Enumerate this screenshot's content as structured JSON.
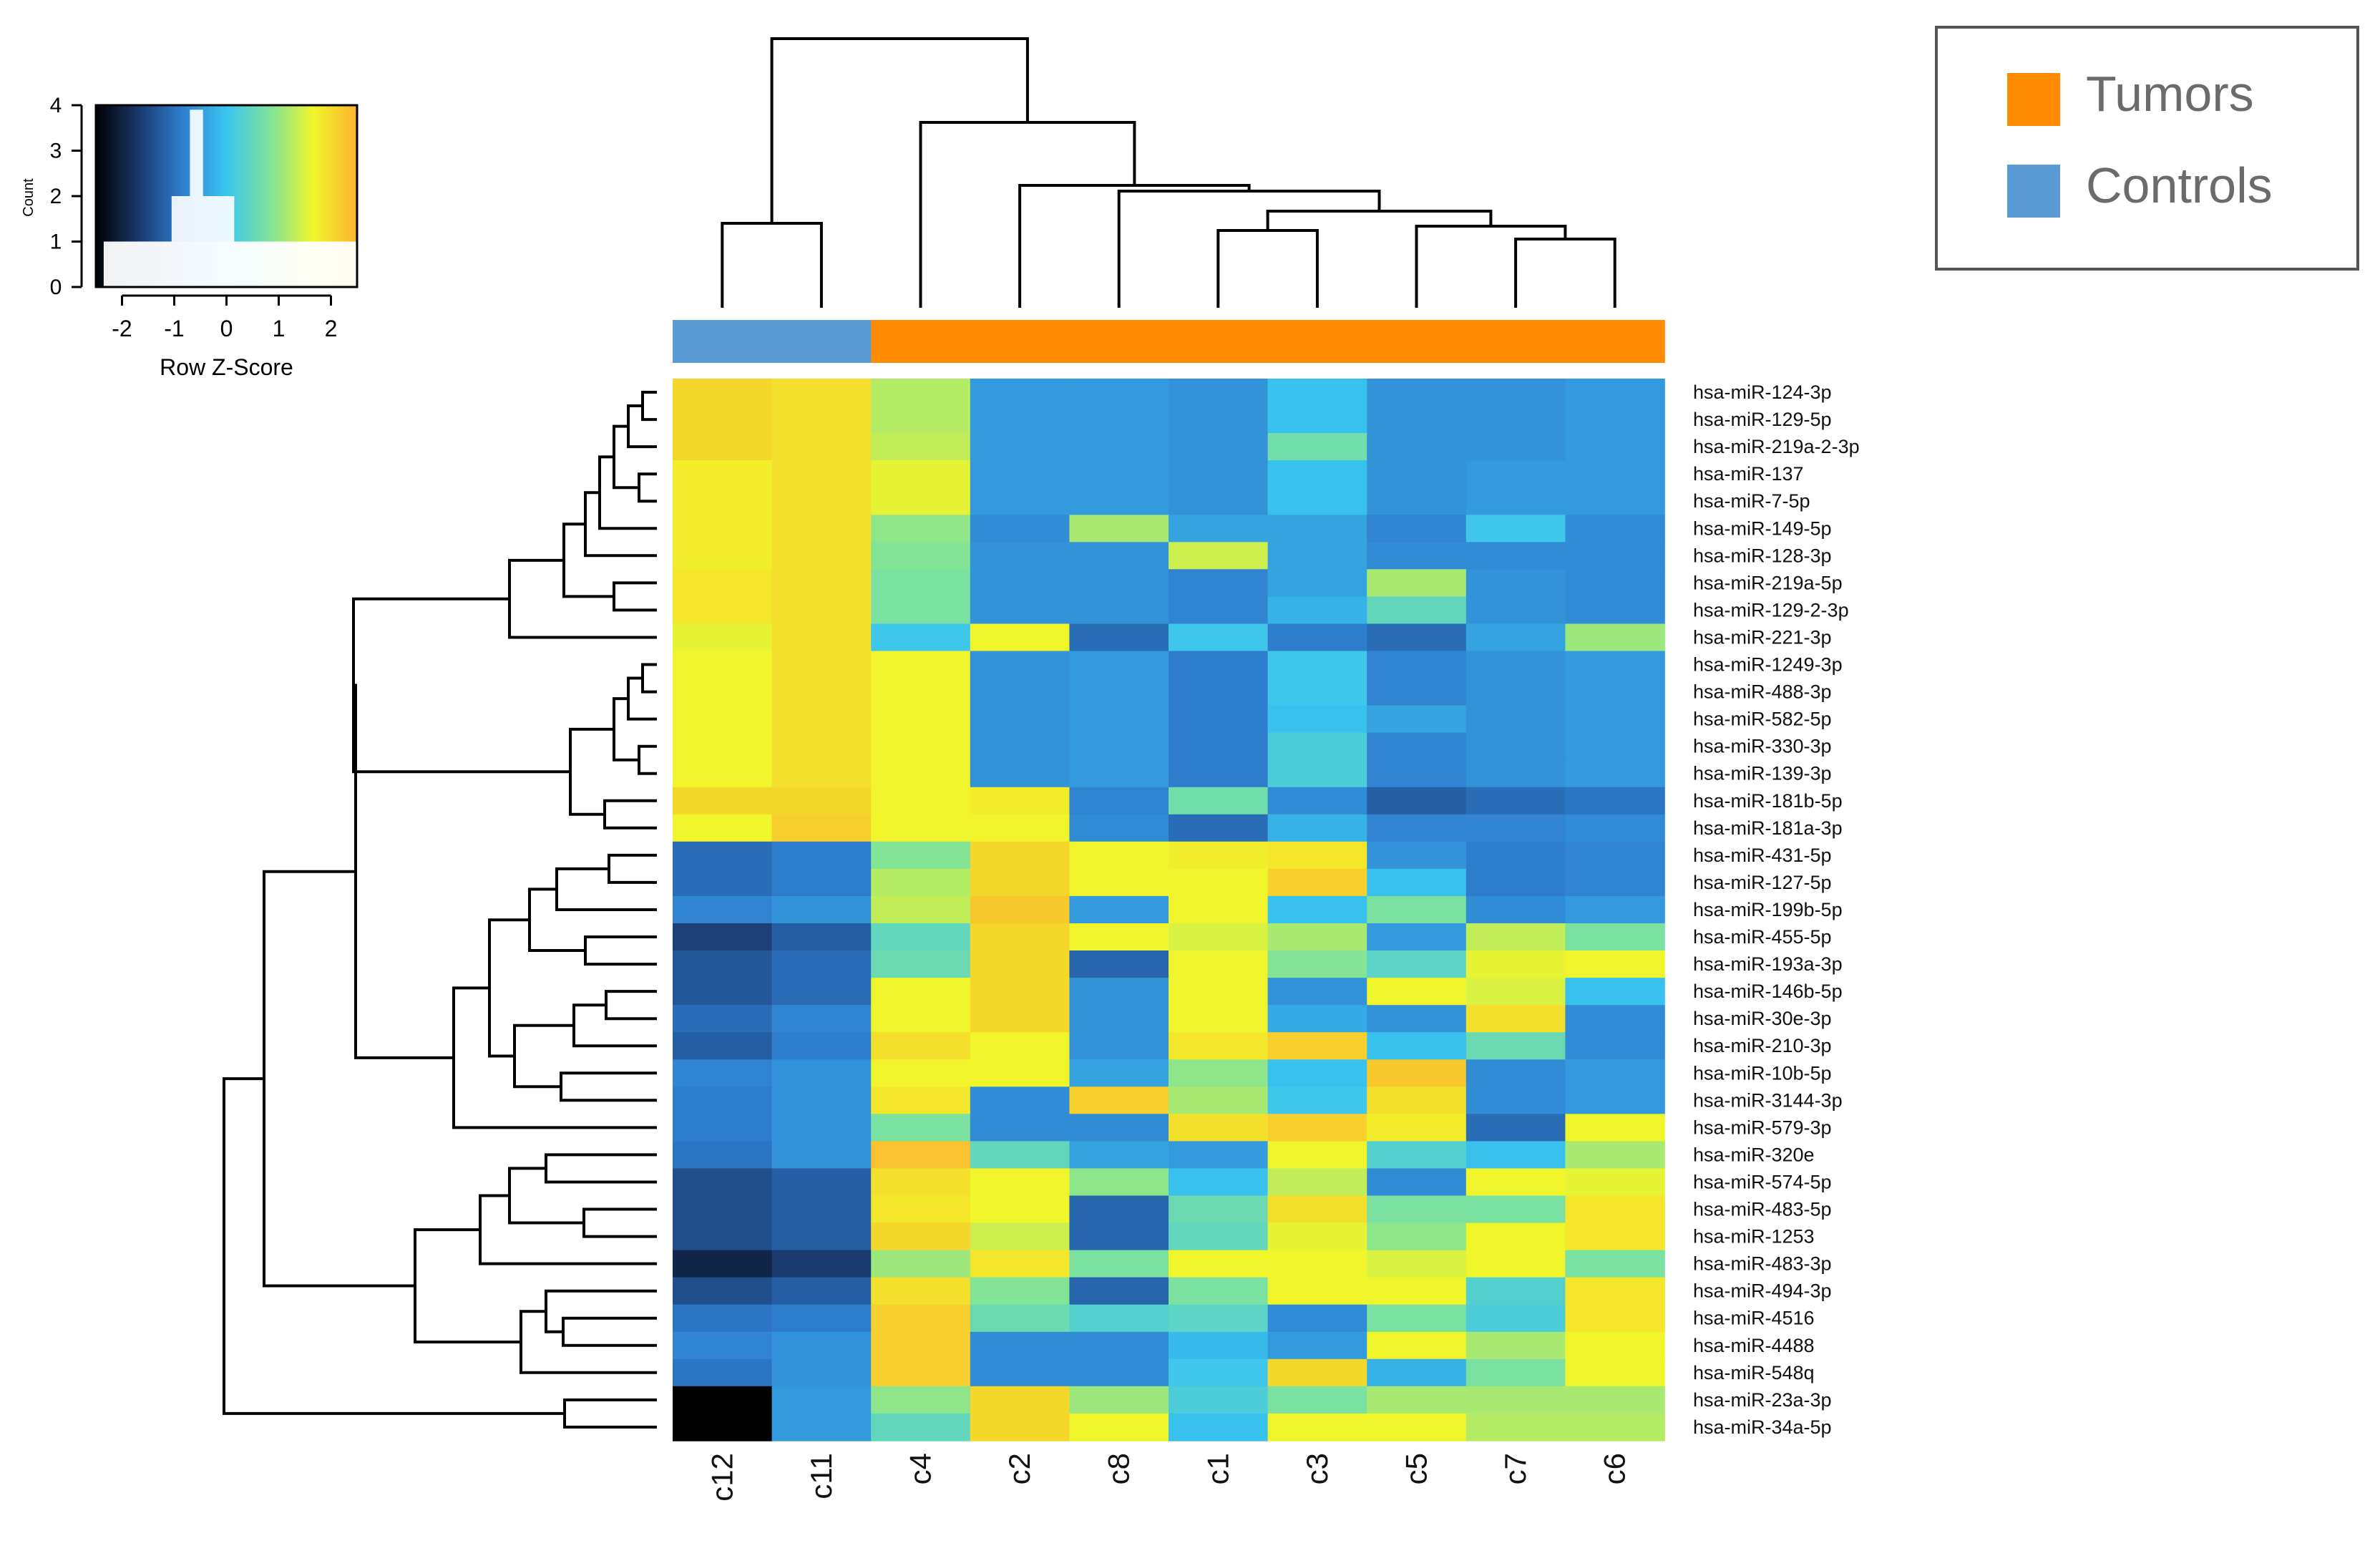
{
  "chart_data": {
    "type": "heatmap",
    "title": "",
    "columns": [
      "c12",
      "c11",
      "c4",
      "c2",
      "c8",
      "c1",
      "c3",
      "c5",
      "c7",
      "c6"
    ],
    "column_groups": [
      "Controls",
      "Controls",
      "Tumors",
      "Tumors",
      "Tumors",
      "Tumors",
      "Tumors",
      "Tumors",
      "Tumors",
      "Tumors"
    ],
    "rows": [
      "hsa-miR-124-3p",
      "hsa-miR-129-5p",
      "hsa-miR-219a-2-3p",
      "hsa-miR-137",
      "hsa-miR-7-5p",
      "hsa-miR-149-5p",
      "hsa-miR-128-3p",
      "hsa-miR-219a-5p",
      "hsa-miR-129-2-3p",
      "hsa-miR-221-3p",
      "hsa-miR-1249-3p",
      "hsa-miR-488-3p",
      "hsa-miR-582-5p",
      "hsa-miR-330-3p",
      "hsa-miR-139-3p",
      "hsa-miR-181b-5p",
      "hsa-miR-181a-3p",
      "hsa-miR-431-5p",
      "hsa-miR-127-5p",
      "hsa-miR-199b-5p",
      "hsa-miR-455-5p",
      "hsa-miR-193a-3p",
      "hsa-miR-146b-5p",
      "hsa-miR-30e-3p",
      "hsa-miR-210-3p",
      "hsa-miR-10b-5p",
      "hsa-miR-3144-3p",
      "hsa-miR-579-3p",
      "hsa-miR-320e",
      "hsa-miR-574-5p",
      "hsa-miR-483-5p",
      "hsa-miR-1253",
      "hsa-miR-483-3p",
      "hsa-miR-494-3p",
      "hsa-miR-4516",
      "hsa-miR-4488",
      "hsa-miR-548q",
      "hsa-miR-23a-3p",
      "hsa-miR-34a-5p"
    ],
    "values": [
      [
        2.0,
        1.9,
        1.1,
        -0.8,
        -0.8,
        -0.9,
        -0.3,
        -0.9,
        -0.9,
        -0.8
      ],
      [
        2.0,
        1.9,
        1.1,
        -0.8,
        -0.8,
        -0.9,
        -0.3,
        -0.9,
        -0.9,
        -0.8
      ],
      [
        2.0,
        1.9,
        1.2,
        -0.8,
        -0.8,
        -0.9,
        0.5,
        -0.9,
        -0.9,
        -0.8
      ],
      [
        1.7,
        1.9,
        1.5,
        -0.8,
        -0.8,
        -0.9,
        -0.3,
        -0.9,
        -0.8,
        -0.8
      ],
      [
        1.7,
        1.9,
        1.5,
        -0.8,
        -0.8,
        -0.9,
        -0.3,
        -0.9,
        -0.8,
        -0.8
      ],
      [
        1.7,
        1.9,
        0.8,
        -1.0,
        1.0,
        -0.7,
        -0.7,
        -1.1,
        -0.2,
        -1.0
      ],
      [
        1.7,
        1.9,
        0.7,
        -0.9,
        -0.9,
        1.3,
        -0.7,
        -1.0,
        -1.0,
        -1.0
      ],
      [
        1.8,
        1.9,
        0.6,
        -0.9,
        -0.9,
        -1.1,
        -0.7,
        1.0,
        -0.9,
        -1.0
      ],
      [
        1.8,
        1.9,
        0.6,
        -0.9,
        -0.9,
        -1.1,
        -0.5,
        0.3,
        -0.9,
        -1.0
      ],
      [
        1.5,
        1.9,
        -0.2,
        1.6,
        -1.4,
        -0.2,
        -1.2,
        -1.4,
        -0.7,
        0.9
      ],
      [
        1.6,
        1.9,
        1.6,
        -0.9,
        -0.8,
        -1.2,
        -0.2,
        -1.1,
        -0.9,
        -0.8
      ],
      [
        1.6,
        1.9,
        1.6,
        -0.9,
        -0.8,
        -1.2,
        -0.2,
        -1.1,
        -0.9,
        -0.8
      ],
      [
        1.6,
        1.9,
        1.6,
        -0.9,
        -0.8,
        -1.2,
        -0.3,
        -0.7,
        -0.9,
        -0.8
      ],
      [
        1.6,
        1.9,
        1.6,
        -0.9,
        -0.8,
        -1.2,
        0.0,
        -1.1,
        -0.9,
        -0.8
      ],
      [
        1.6,
        1.9,
        1.6,
        -0.9,
        -0.8,
        -1.2,
        0.0,
        -1.1,
        -0.9,
        -0.8
      ],
      [
        2.0,
        2.0,
        1.6,
        1.7,
        -1.1,
        0.5,
        -1.0,
        -1.6,
        -1.4,
        -1.3
      ],
      [
        1.6,
        2.1,
        1.6,
        1.6,
        -1.0,
        -1.4,
        -0.5,
        -1.1,
        -1.1,
        -1.0
      ],
      [
        -1.4,
        -1.2,
        0.7,
        2.0,
        1.6,
        1.7,
        1.8,
        -0.9,
        -1.2,
        -1.1
      ],
      [
        -1.4,
        -1.2,
        1.1,
        2.0,
        1.6,
        1.6,
        2.1,
        -0.3,
        -1.2,
        -1.1
      ],
      [
        -1.1,
        -0.9,
        1.2,
        2.2,
        -0.8,
        1.6,
        -0.3,
        0.6,
        -1.0,
        -0.8
      ],
      [
        -2.0,
        -1.6,
        0.3,
        2.0,
        1.6,
        1.4,
        1.0,
        -0.8,
        1.2,
        0.6
      ],
      [
        -1.7,
        -1.4,
        0.4,
        2.0,
        -1.5,
        1.6,
        0.7,
        0.2,
        1.5,
        1.6
      ],
      [
        -1.7,
        -1.4,
        1.6,
        2.0,
        -0.9,
        1.6,
        -0.9,
        1.6,
        1.4,
        -0.3
      ],
      [
        -1.4,
        -1.1,
        1.6,
        2.0,
        -0.9,
        1.6,
        -0.6,
        -0.9,
        1.9,
        -1.0
      ],
      [
        -1.6,
        -1.2,
        1.9,
        1.6,
        -0.9,
        1.8,
        2.1,
        -0.3,
        0.4,
        -1.0
      ],
      [
        -1.1,
        -0.9,
        1.6,
        1.6,
        -0.7,
        0.8,
        -0.3,
        2.2,
        -1.0,
        -0.8
      ],
      [
        -1.2,
        -0.9,
        1.8,
        -1.0,
        2.1,
        1.0,
        -0.2,
        1.9,
        -1.0,
        -0.8
      ],
      [
        -1.2,
        -0.9,
        0.6,
        -1.0,
        -1.0,
        1.9,
        2.1,
        1.7,
        -1.4,
        1.6
      ],
      [
        -1.3,
        -0.9,
        2.3,
        0.3,
        -0.7,
        -0.8,
        1.6,
        0.1,
        -0.3,
        1.0
      ],
      [
        -1.8,
        -1.6,
        1.9,
        1.6,
        0.8,
        -0.3,
        1.2,
        -1.0,
        1.6,
        1.5
      ],
      [
        -1.8,
        -1.6,
        1.8,
        1.6,
        -1.5,
        0.4,
        1.9,
        0.6,
        0.6,
        1.8
      ],
      [
        -1.8,
        -1.6,
        2.0,
        1.3,
        -1.5,
        0.3,
        1.5,
        0.8,
        1.6,
        1.8
      ],
      [
        -2.4,
        -2.1,
        0.9,
        1.8,
        0.6,
        1.6,
        1.6,
        1.4,
        1.6,
        0.6
      ],
      [
        -1.8,
        -1.6,
        1.9,
        0.7,
        -1.5,
        0.6,
        1.6,
        1.6,
        0.1,
        1.8
      ],
      [
        -1.3,
        -1.2,
        2.1,
        0.4,
        0.1,
        0.2,
        -1.0,
        0.6,
        0.0,
        1.8
      ],
      [
        -1.1,
        -0.9,
        2.1,
        -1.0,
        -1.0,
        -0.4,
        -0.8,
        1.6,
        1.0,
        1.6
      ],
      [
        -1.3,
        -0.9,
        2.1,
        -1.0,
        -1.0,
        -0.2,
        2.0,
        -0.5,
        0.6,
        1.6
      ],
      [
        -3.0,
        -0.8,
        0.8,
        2.0,
        0.9,
        0.0,
        0.6,
        1.0,
        1.0,
        1.0
      ],
      [
        -3.0,
        -0.8,
        0.3,
        2.0,
        1.6,
        -0.3,
        1.6,
        1.6,
        1.1,
        1.1
      ]
    ],
    "color_key": {
      "title": "Count",
      "xlabel": "Row Z-Score",
      "x_ticks": [
        "-2",
        "-1",
        "0",
        "1",
        "2"
      ],
      "y_ticks": [
        "0",
        "1",
        "2",
        "3",
        "4"
      ],
      "xlim": [
        -2.5,
        2.5
      ],
      "ylim": [
        0,
        4
      ],
      "colors": [
        "#000000",
        "#1a3a6e",
        "#2f7fd0",
        "#3ac5f0",
        "#7fe39a",
        "#f0f52a",
        "#fcb42f"
      ]
    },
    "legend": [
      {
        "label": "Tumors",
        "color": "#ff8c00"
      },
      {
        "label": "Controls",
        "color": "#5b9bd5"
      }
    ]
  }
}
